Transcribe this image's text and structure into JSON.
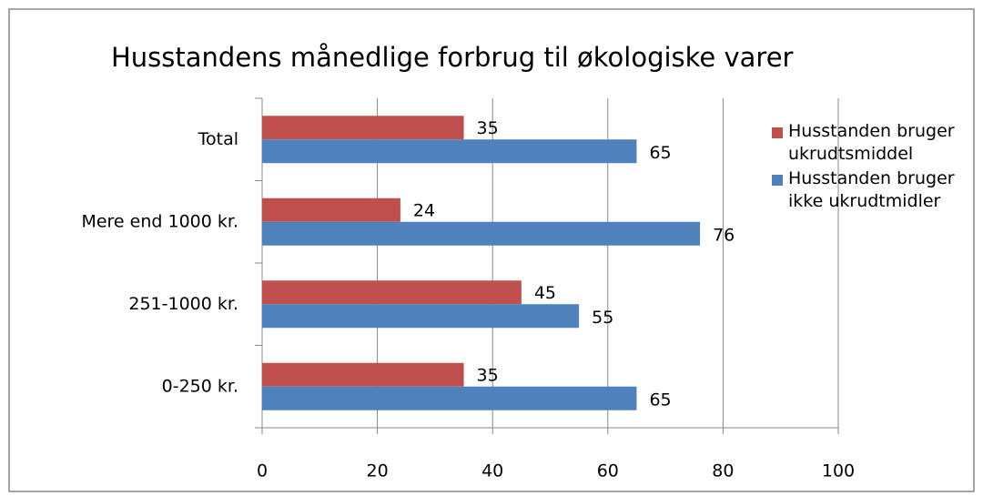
{
  "chart_data": {
    "type": "bar",
    "orientation": "horizontal",
    "title": "Husstandens månedlige forbrug til økologiske varer",
    "categories": [
      "Total",
      "Mere end 1000 kr.",
      "251-1000 kr.",
      "0-250 kr."
    ],
    "series": [
      {
        "name": "Husstanden bruger ukrudtsmiddel",
        "color": "#c0504d",
        "values": [
          35,
          24,
          45,
          35
        ]
      },
      {
        "name": "Husstanden bruger ikke ukrudtmidler",
        "color": "#4f81bd",
        "values": [
          65,
          76,
          55,
          65
        ]
      }
    ],
    "xlim": [
      0,
      100
    ],
    "xticks": [
      0,
      20,
      40,
      60,
      80,
      100
    ],
    "grid": true,
    "legend": "right"
  }
}
